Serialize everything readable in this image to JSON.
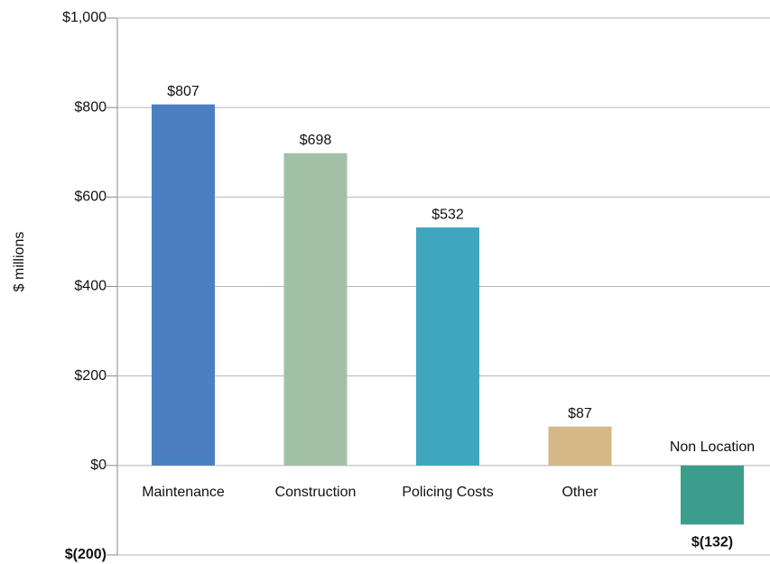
{
  "chart_data": {
    "type": "bar",
    "y_label": "$ millions",
    "categories": [
      "Maintenance",
      "Construction",
      "Policing Costs",
      "Other",
      "Non Location"
    ],
    "values": [
      807,
      698,
      532,
      87,
      -132
    ],
    "value_labels": [
      "$807",
      "$698",
      "$532",
      "$87",
      "$(132)"
    ],
    "colors": [
      "#4a80c2",
      "#a2c0a6",
      "#3fa6c0",
      "#d6b888",
      "#3b9e8c"
    ],
    "ylim": [
      -200,
      1000
    ],
    "yticks": [
      {
        "value": -200,
        "label": "$(200)"
      },
      {
        "value": 0,
        "label": "$0"
      },
      {
        "value": 200,
        "label": "$200"
      },
      {
        "value": 400,
        "label": "$400"
      },
      {
        "value": 600,
        "label": "$600"
      },
      {
        "value": 800,
        "label": "$800"
      },
      {
        "value": 1000,
        "label": "$1,000"
      }
    ],
    "grid": true
  }
}
